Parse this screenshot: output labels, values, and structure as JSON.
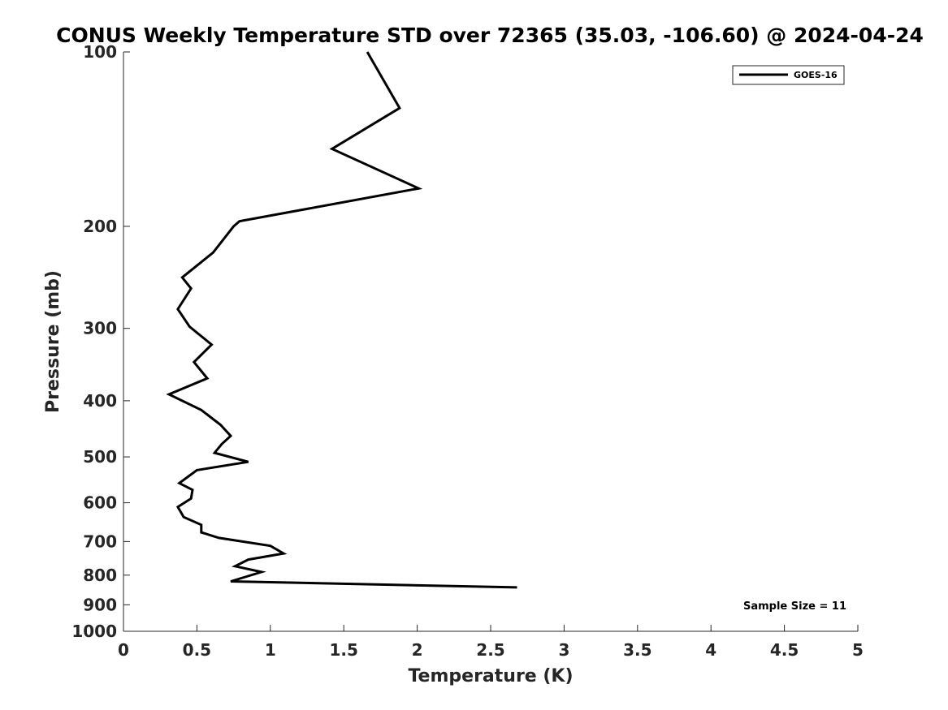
{
  "chart_data": {
    "type": "line",
    "title": "CONUS Weekly Temperature STD over 72365 (35.03, -106.60) @ 2024-04-24",
    "xlabel": "Temperature (K)",
    "ylabel": "Pressure (mb)",
    "xlim": [
      0,
      5
    ],
    "ylim": [
      100,
      1000
    ],
    "y_scale": "log",
    "y_reversed": true,
    "x_ticks": [
      "0",
      "0.5",
      "1",
      "1.5",
      "2",
      "2.5",
      "3",
      "3.5",
      "4",
      "4.5",
      "5"
    ],
    "y_ticks": [
      "100",
      "200",
      "300",
      "400",
      "500",
      "600",
      "700",
      "800",
      "900",
      "1000"
    ],
    "grid": false,
    "legend_position": "top-right",
    "annotation": "Sample Size = 11",
    "series": [
      {
        "name": "GOES-16",
        "color": "#000000",
        "points": [
          {
            "x": 1.66,
            "y": 100
          },
          {
            "x": 1.88,
            "y": 125
          },
          {
            "x": 1.42,
            "y": 147
          },
          {
            "x": 2.01,
            "y": 172
          },
          {
            "x": 0.79,
            "y": 196
          },
          {
            "x": 0.75,
            "y": 200
          },
          {
            "x": 0.61,
            "y": 222
          },
          {
            "x": 0.4,
            "y": 245
          },
          {
            "x": 0.46,
            "y": 256
          },
          {
            "x": 0.37,
            "y": 278
          },
          {
            "x": 0.45,
            "y": 298
          },
          {
            "x": 0.6,
            "y": 320
          },
          {
            "x": 0.48,
            "y": 343
          },
          {
            "x": 0.57,
            "y": 366
          },
          {
            "x": 0.31,
            "y": 390
          },
          {
            "x": 0.53,
            "y": 415
          },
          {
            "x": 0.66,
            "y": 440
          },
          {
            "x": 0.73,
            "y": 460
          },
          {
            "x": 0.67,
            "y": 475
          },
          {
            "x": 0.62,
            "y": 492
          },
          {
            "x": 0.85,
            "y": 510
          },
          {
            "x": 0.5,
            "y": 527
          },
          {
            "x": 0.38,
            "y": 555
          },
          {
            "x": 0.47,
            "y": 570
          },
          {
            "x": 0.46,
            "y": 590
          },
          {
            "x": 0.37,
            "y": 610
          },
          {
            "x": 0.41,
            "y": 635
          },
          {
            "x": 0.53,
            "y": 655
          },
          {
            "x": 0.53,
            "y": 675
          },
          {
            "x": 0.65,
            "y": 690
          },
          {
            "x": 1.0,
            "y": 712
          },
          {
            "x": 1.09,
            "y": 734
          },
          {
            "x": 0.85,
            "y": 752
          },
          {
            "x": 0.76,
            "y": 772
          },
          {
            "x": 0.94,
            "y": 790
          },
          {
            "x": 0.73,
            "y": 820
          },
          {
            "x": 2.68,
            "y": 840
          }
        ]
      }
    ]
  }
}
